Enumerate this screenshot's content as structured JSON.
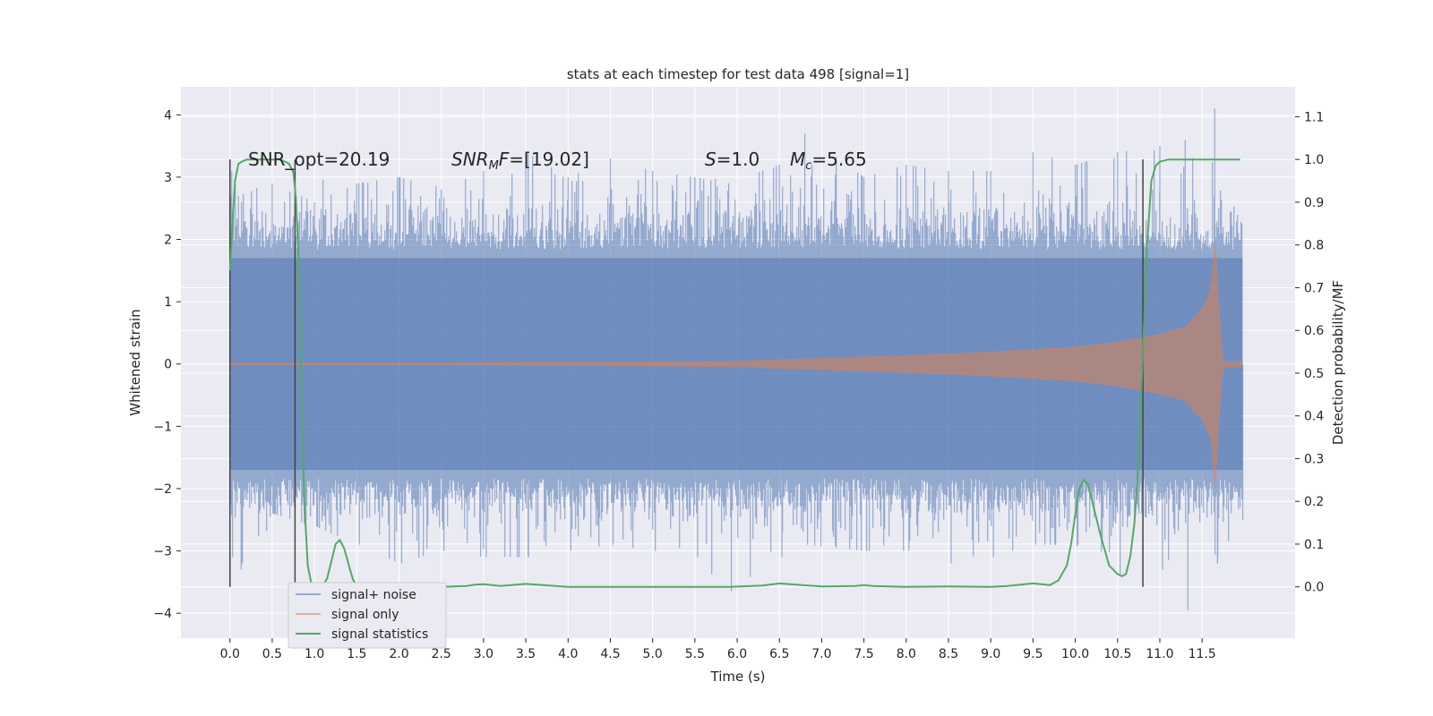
{
  "chart_data": {
    "type": "line",
    "title": "stats at each timestep for test data 498 [signal=1]",
    "xlabel": "Time (s)",
    "ylabel": "Whitened strain",
    "y2label": "Detection probability/MF",
    "xlim": [
      -0.58,
      12.6
    ],
    "ylim": [
      -4.4,
      4.45
    ],
    "y2lim": [
      -0.12,
      1.17
    ],
    "x_ticks": [
      0.0,
      0.5,
      1.0,
      1.5,
      2.0,
      2.5,
      3.0,
      3.5,
      4.0,
      4.5,
      5.0,
      5.5,
      6.0,
      6.5,
      7.0,
      7.5,
      8.0,
      8.5,
      9.0,
      9.5,
      10.0,
      10.5,
      11.0,
      11.5
    ],
    "x_tick_labels": [
      "0.0",
      "0.5",
      "1.0",
      "1.5",
      "2.0",
      "2.5",
      "3.0",
      "3.5",
      "4.0",
      "4.5",
      "5.0",
      "5.5",
      "6.0",
      "6.5",
      "7.0",
      "7.5",
      "8.0",
      "8.5",
      "9.0",
      "9.5",
      "10.0",
      "10.5",
      "11.0",
      "11.5"
    ],
    "y_ticks": [
      -4,
      -3,
      -2,
      -1,
      0,
      1,
      2,
      3,
      4
    ],
    "y_tick_labels": [
      "−4",
      "−3",
      "−2",
      "−1",
      "0",
      "1",
      "2",
      "3",
      "4"
    ],
    "y2_ticks": [
      0.0,
      0.1,
      0.2,
      0.3,
      0.4,
      0.5,
      0.6,
      0.7,
      0.8,
      0.9,
      1.0,
      1.1
    ],
    "y2_tick_labels": [
      "0.0",
      "0.1",
      "0.2",
      "0.3",
      "0.4",
      "0.5",
      "0.6",
      "0.7",
      "0.8",
      "0.9",
      "1.0",
      "1.1"
    ],
    "grid": true,
    "legend_position": "bottom-left",
    "series": [
      {
        "name": "signal+ noise",
        "color": "#4c72b0",
        "kind": "noise",
        "x_range": [
          0.0,
          11.98
        ],
        "typical_amplitude": 2.0,
        "envelope": [
          [
            0.0,
            3.2,
            -3.1
          ],
          [
            0.1,
            2.7,
            -3.3
          ],
          [
            0.5,
            2.9,
            -2.4
          ],
          [
            1.0,
            2.6,
            -2.6
          ],
          [
            1.5,
            2.9,
            -2.9
          ],
          [
            2.0,
            3.0,
            -3.2
          ],
          [
            2.5,
            2.8,
            -3.0
          ],
          [
            3.0,
            3.1,
            -3.1
          ],
          [
            3.5,
            3.4,
            -3.1
          ],
          [
            4.0,
            3.0,
            -3.0
          ],
          [
            4.5,
            3.3,
            -2.9
          ],
          [
            5.0,
            3.1,
            -3.0
          ],
          [
            5.5,
            3.0,
            -3.1
          ],
          [
            5.9,
            2.9,
            -3.65
          ],
          [
            6.5,
            3.2,
            -3.1
          ],
          [
            6.8,
            3.7,
            -2.9
          ],
          [
            7.5,
            3.0,
            -3.0
          ],
          [
            8.0,
            3.2,
            -3.0
          ],
          [
            8.5,
            3.1,
            -3.2
          ],
          [
            9.0,
            3.1,
            -3.1
          ],
          [
            9.5,
            3.4,
            -2.9
          ],
          [
            10.0,
            3.2,
            -2.9
          ],
          [
            10.5,
            3.4,
            -3.4
          ],
          [
            11.0,
            3.5,
            -3.3
          ],
          [
            11.3,
            3.6,
            -3.95
          ],
          [
            11.65,
            4.1,
            -3.2
          ],
          [
            11.95,
            2.0,
            -2.5
          ]
        ]
      },
      {
        "name": "signal only",
        "color": "#dd8452",
        "kind": "chirp",
        "envelope": [
          [
            0.0,
            0.02
          ],
          [
            2.0,
            0.02
          ],
          [
            4.0,
            0.03
          ],
          [
            6.0,
            0.05
          ],
          [
            7.0,
            0.1
          ],
          [
            8.0,
            0.14
          ],
          [
            9.0,
            0.2
          ],
          [
            10.0,
            0.28
          ],
          [
            10.5,
            0.36
          ],
          [
            11.0,
            0.48
          ],
          [
            11.3,
            0.6
          ],
          [
            11.5,
            0.9
          ],
          [
            11.6,
            1.2
          ],
          [
            11.66,
            2.1
          ],
          [
            11.7,
            1.0
          ],
          [
            11.75,
            0.05
          ],
          [
            11.98,
            0.05
          ]
        ]
      },
      {
        "name": "signal statistics",
        "color": "#55a868",
        "kind": "probability",
        "axis": "right",
        "x": [
          0.0,
          0.03,
          0.06,
          0.1,
          0.14,
          0.2,
          0.3,
          0.4,
          0.5,
          0.6,
          0.65,
          0.7,
          0.75,
          0.78,
          0.81,
          0.84,
          0.86,
          0.88,
          0.92,
          0.96,
          1.0,
          1.05,
          1.1,
          1.15,
          1.2,
          1.25,
          1.3,
          1.35,
          1.38,
          1.42,
          1.46,
          1.5,
          1.55,
          1.6,
          1.7,
          2.0,
          2.5,
          2.8,
          2.9,
          3.0,
          3.2,
          3.5,
          4.0,
          5.0,
          5.9,
          6.3,
          6.5,
          6.7,
          7.0,
          7.4,
          7.5,
          7.6,
          8.0,
          8.5,
          9.0,
          9.2,
          9.4,
          9.5,
          9.6,
          9.7,
          9.8,
          9.9,
          9.95,
          10.0,
          10.05,
          10.1,
          10.15,
          10.2,
          10.3,
          10.4,
          10.5,
          10.55,
          10.6,
          10.65,
          10.7,
          10.75,
          10.8,
          10.85,
          10.9,
          10.95,
          11.0,
          11.1,
          11.2,
          11.5,
          11.95
        ],
        "y": [
          0.74,
          0.85,
          0.95,
          0.99,
          0.995,
          1.0,
          1.0,
          1.0,
          1.0,
          1.0,
          0.995,
          0.99,
          0.97,
          0.91,
          0.78,
          0.55,
          0.35,
          0.2,
          0.05,
          0.01,
          0.005,
          0.002,
          0.002,
          0.02,
          0.06,
          0.1,
          0.11,
          0.09,
          0.07,
          0.04,
          0.015,
          0.005,
          0.002,
          0.0,
          0.0,
          0.0,
          0.0,
          0.002,
          0.005,
          0.006,
          0.002,
          0.007,
          0.0,
          0.0,
          0.0,
          0.003,
          0.008,
          0.005,
          0.001,
          0.002,
          0.004,
          0.002,
          0.0,
          0.001,
          0.0,
          0.002,
          0.006,
          0.008,
          0.006,
          0.004,
          0.015,
          0.05,
          0.1,
          0.17,
          0.23,
          0.25,
          0.24,
          0.2,
          0.12,
          0.05,
          0.03,
          0.025,
          0.03,
          0.07,
          0.15,
          0.3,
          0.55,
          0.8,
          0.95,
          0.985,
          0.995,
          1.0,
          1.0,
          1.0,
          1.0
        ]
      }
    ],
    "vlines": [
      0.0,
      0.77,
      10.8
    ],
    "vline_color": "#444444",
    "annotations": [
      {
        "x": 0.2,
        "text": "SNR_opt=20.19"
      },
      {
        "x": 2.6,
        "text_parts": [
          [
            "SNR",
            "italic"
          ],
          [
            "M",
            "italic-sub"
          ],
          [
            "F=[19.02]",
            "mixed"
          ]
        ]
      },
      {
        "x": 5.6,
        "text_parts": [
          [
            "S",
            "italic"
          ],
          [
            "=1.0",
            "normal"
          ]
        ]
      },
      {
        "x": 6.6,
        "text_parts": [
          [
            "M",
            "italic"
          ],
          [
            "c",
            "italic-sub"
          ],
          [
            "=5.65",
            "normal"
          ]
        ]
      }
    ],
    "annotation_y": 3.3,
    "colors": {
      "plot_bg": "#eaeaf2",
      "grid": "#ffffff",
      "text": "#262626",
      "legend_bg": "#eaeaf2",
      "legend_border": "#cccccc"
    }
  }
}
